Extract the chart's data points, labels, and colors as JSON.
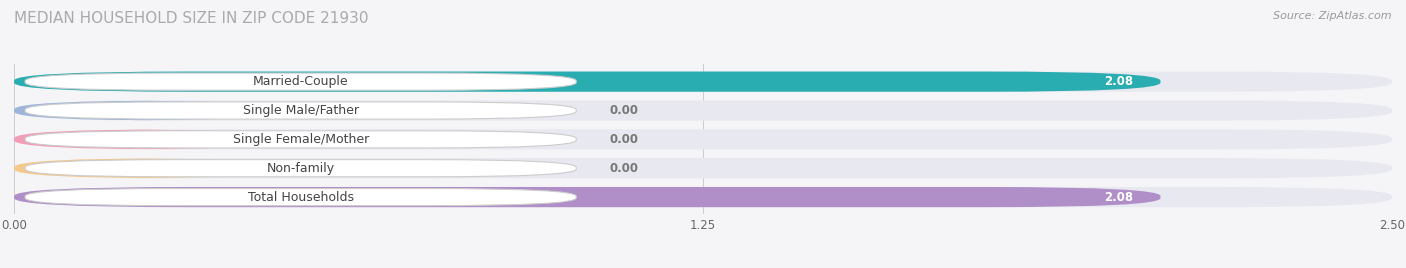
{
  "title": "MEDIAN HOUSEHOLD SIZE IN ZIP CODE 21930",
  "source": "Source: ZipAtlas.com",
  "categories": [
    "Married-Couple",
    "Single Male/Father",
    "Single Female/Mother",
    "Non-family",
    "Total Households"
  ],
  "values": [
    2.08,
    0.0,
    0.0,
    0.0,
    2.08
  ],
  "bar_colors": [
    "#29adb0",
    "#9db4da",
    "#f09db5",
    "#f5c98a",
    "#b08ec8"
  ],
  "bar_bg_color": "#e8e8f0",
  "label_bg_color": "#ffffff",
  "xlim_max": 2.5,
  "xticks": [
    0.0,
    1.25,
    2.5
  ],
  "xtick_labels": [
    "0.00",
    "1.25",
    "2.50"
  ],
  "value_label_color": "#ffffff",
  "value_label_color_zero": "#777777",
  "grid_color": "#cccccc",
  "title_color": "#aaaaaa",
  "source_color": "#999999",
  "background_color": "#f5f5f8",
  "bar_height": 0.7,
  "bar_gap": 0.3,
  "title_fontsize": 11,
  "source_fontsize": 8,
  "label_fontsize": 9,
  "value_fontsize": 8.5
}
